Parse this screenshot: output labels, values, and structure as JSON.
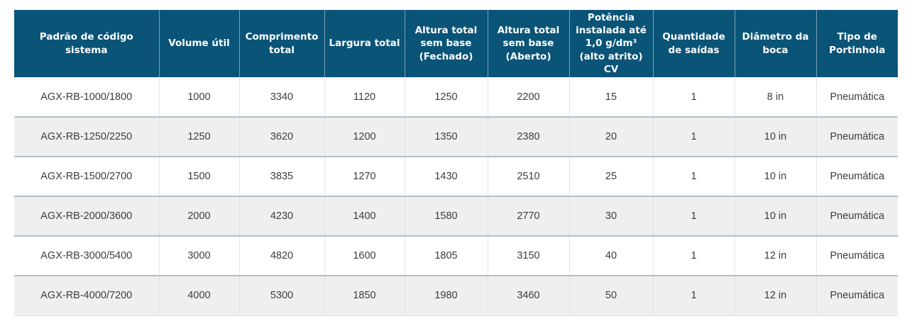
{
  "table": {
    "columns": [
      "Padrão de código sistema",
      "Volume útil",
      "Comprimento total",
      "Largura total",
      "Altura total sem base (Fechado)",
      "Altura total sem base (Aberto)",
      "Potência instalada até 1,0 g/dm³ (alto atrito) CV",
      "Quantidade de saídas",
      "Diâmetro da boca",
      "Tipo de Portinhola"
    ],
    "rows": [
      [
        "AGX-RB-1000/1800",
        "1000",
        "3340",
        "1120",
        "1250",
        "2200",
        "15",
        "1",
        "8 in",
        "Pneumática"
      ],
      [
        "AGX-RB-1250/2250",
        "1250",
        "3620",
        "1200",
        "1350",
        "2380",
        "20",
        "1",
        "10 in",
        "Pneumática"
      ],
      [
        "AGX-RB-1500/2700",
        "1500",
        "3835",
        "1270",
        "1430",
        "2510",
        "25",
        "1",
        "10 in",
        "Pneumática"
      ],
      [
        "AGX-RB-2000/3600",
        "2000",
        "4230",
        "1400",
        "1580",
        "2770",
        "30",
        "1",
        "10 in",
        "Pneumática"
      ],
      [
        "AGX-RB-3000/5400",
        "3000",
        "4820",
        "1600",
        "1805",
        "3150",
        "40",
        "1",
        "12 in",
        "Pneumática"
      ],
      [
        "AGX-RB-4000/7200",
        "4000",
        "5300",
        "1850",
        "1980",
        "3460",
        "50",
        "1",
        "12 in",
        "Pneumática"
      ]
    ]
  },
  "colors": {
    "header_background": "#0a5478",
    "header_text": "#ffffff",
    "body_text": "#3d3d3d",
    "row_alternate_background": "#efefef",
    "row_divider": "#b3c0ca",
    "cell_divider": "#e2e2e2"
  }
}
